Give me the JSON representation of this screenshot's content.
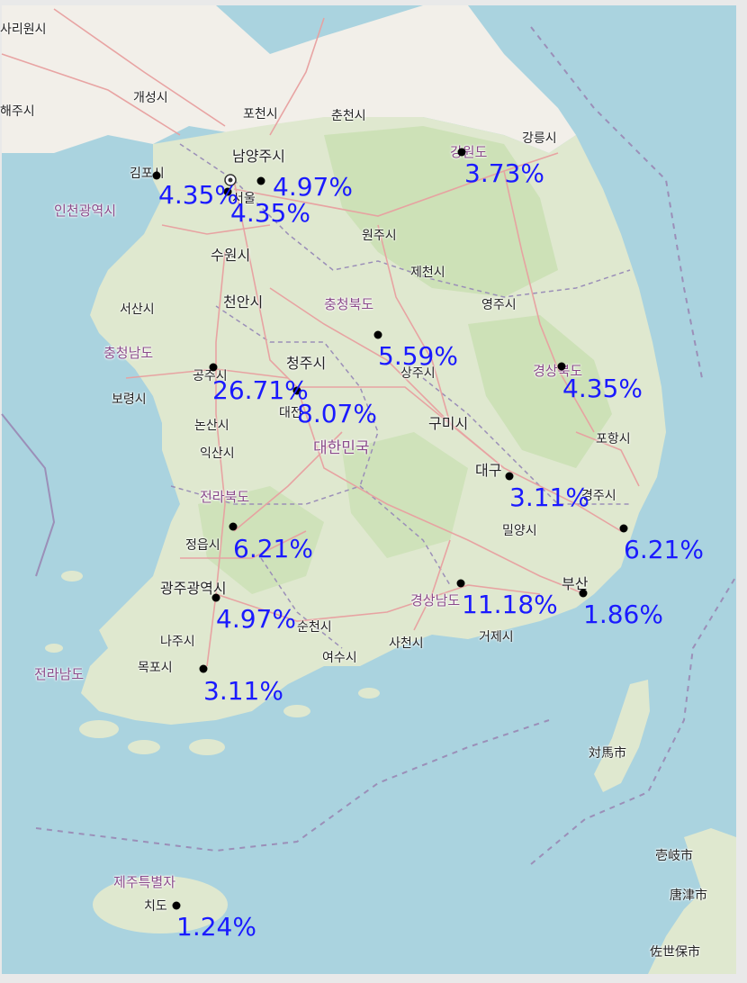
{
  "map": {
    "colors": {
      "sea": "#aad3df",
      "land": "#f2efe9",
      "green": "#cde6b8",
      "road": "#e8a0a0",
      "border": "#9b8fb8",
      "label_blue": "#1a1aff"
    },
    "place_labels": [
      {
        "id": "sariwon",
        "text": "사리원시"
      },
      {
        "id": "haeju",
        "text": "해주시"
      },
      {
        "id": "kaesong",
        "text": "개성시"
      },
      {
        "id": "pocheon",
        "text": "포천시"
      },
      {
        "id": "chuncheon",
        "text": "춘천시"
      },
      {
        "id": "gangneung",
        "text": "강릉시"
      },
      {
        "id": "namyangju",
        "text": "남양주시"
      },
      {
        "id": "gimpo",
        "text": "김포시"
      },
      {
        "id": "incheon",
        "text": "인천광역시"
      },
      {
        "id": "wonju",
        "text": "원주시"
      },
      {
        "id": "suwon",
        "text": "수원시"
      },
      {
        "id": "jecheon",
        "text": "제천시"
      },
      {
        "id": "cheonan",
        "text": "천안시"
      },
      {
        "id": "chungbuk",
        "text": "충청북도"
      },
      {
        "id": "yeongju",
        "text": "영주시"
      },
      {
        "id": "seosan",
        "text": "서산시"
      },
      {
        "id": "chungnam",
        "text": "충청남도"
      },
      {
        "id": "cheongju",
        "text": "청주시"
      },
      {
        "id": "gongju",
        "text": "공주시"
      },
      {
        "id": "sangju",
        "text": "상주시"
      },
      {
        "id": "gyeongbuk",
        "text": "경상북도"
      },
      {
        "id": "boryeong",
        "text": "보령시"
      },
      {
        "id": "daejeon",
        "text": "대전"
      },
      {
        "id": "nonsan",
        "text": "논산시"
      },
      {
        "id": "gumi",
        "text": "구미시"
      },
      {
        "id": "korea",
        "text": "대한민국"
      },
      {
        "id": "pohang",
        "text": "포항시"
      },
      {
        "id": "iksan",
        "text": "익산시"
      },
      {
        "id": "daegu",
        "text": "대구"
      },
      {
        "id": "jeonbuk",
        "text": "전라북도"
      },
      {
        "id": "gyeongju",
        "text": "경주시"
      },
      {
        "id": "jeongeup",
        "text": "정읍시"
      },
      {
        "id": "miryang",
        "text": "밀양시"
      },
      {
        "id": "gwangju",
        "text": "광주광역시"
      },
      {
        "id": "busan",
        "text": "부산"
      },
      {
        "id": "gyeongnam",
        "text": "경상남도"
      },
      {
        "id": "suncheon",
        "text": "순천시"
      },
      {
        "id": "naju",
        "text": "나주시"
      },
      {
        "id": "sacheon",
        "text": "사천시"
      },
      {
        "id": "geoje",
        "text": "거제시"
      },
      {
        "id": "mokpo",
        "text": "목포시"
      },
      {
        "id": "jeonnam",
        "text": "전라남도"
      },
      {
        "id": "yeosu",
        "text": "여수시"
      },
      {
        "id": "tsushima",
        "text": "対馬市"
      },
      {
        "id": "iki",
        "text": "壱岐市"
      },
      {
        "id": "jeju1",
        "text": "제주특별자"
      },
      {
        "id": "jeju2",
        "text": "치도"
      },
      {
        "id": "karatsu",
        "text": "唐津市"
      },
      {
        "id": "sasebo",
        "text": "佐世保市"
      },
      {
        "id": "gangwon",
        "text": "강원도"
      },
      {
        "id": "seoul",
        "text": "서울"
      }
    ],
    "percent_labels": [
      {
        "id": "gimpo-pct",
        "text": "4.35%"
      },
      {
        "id": "namyangju-pct",
        "text": "4.97%"
      },
      {
        "id": "seoul-pct",
        "text": "4.35%"
      },
      {
        "id": "gangwon-pct",
        "text": "3.73%"
      },
      {
        "id": "chungbuk-pct",
        "text": "5.59%"
      },
      {
        "id": "gongju-pct",
        "text": "26.71%"
      },
      {
        "id": "daejeon-pct",
        "text": "8.07%"
      },
      {
        "id": "gyeongbuk-pct",
        "text": "4.35%"
      },
      {
        "id": "daegu-pct",
        "text": "3.11%"
      },
      {
        "id": "jeongeup-pct",
        "text": "6.21%"
      },
      {
        "id": "ulsan-pct",
        "text": "6.21%"
      },
      {
        "id": "gwangju-pct",
        "text": "4.97%"
      },
      {
        "id": "gyeongnam-pct",
        "text": "11.18%"
      },
      {
        "id": "busan-pct",
        "text": "1.86%"
      },
      {
        "id": "mokpo-pct",
        "text": "3.11%"
      },
      {
        "id": "jeju-pct",
        "text": "1.24%"
      }
    ]
  }
}
